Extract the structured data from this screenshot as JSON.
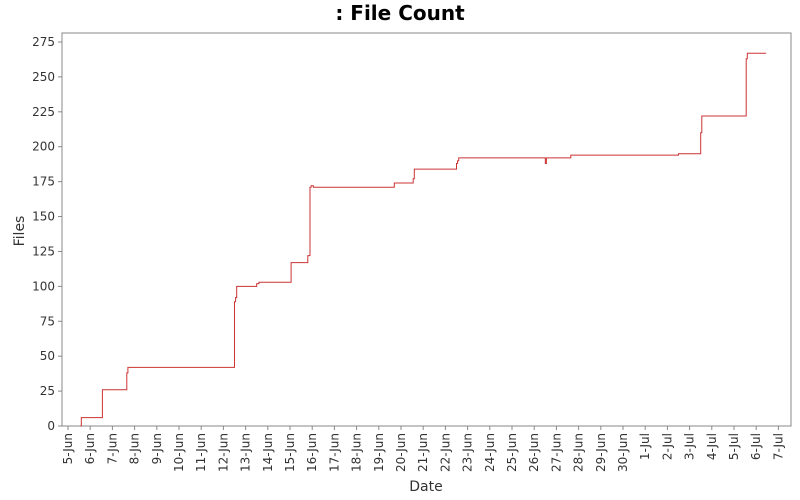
{
  "chart_data": {
    "type": "line",
    "title": ": File Count",
    "xlabel": "Date",
    "ylabel": "Files",
    "ylim": [
      0,
      275
    ],
    "yticks": [
      0,
      25,
      50,
      75,
      100,
      125,
      150,
      175,
      200,
      225,
      250,
      275
    ],
    "x_tick_labels": [
      "5-Jun",
      "6-Jun",
      "7-Jun",
      "8-Jun",
      "9-Jun",
      "10-Jun",
      "11-Jun",
      "12-Jun",
      "13-Jun",
      "14-Jun",
      "15-Jun",
      "16-Jun",
      "17-Jun",
      "18-Jun",
      "19-Jun",
      "20-Jun",
      "21-Jun",
      "22-Jun",
      "23-Jun",
      "24-Jun",
      "25-Jun",
      "26-Jun",
      "27-Jun",
      "28-Jun",
      "29-Jun",
      "30-Jun",
      "1-Jul",
      "2-Jul",
      "3-Jul",
      "4-Jul",
      "5-Jul",
      "6-Jul",
      "7-Jul"
    ],
    "step": true,
    "grid": false,
    "legend": "none",
    "series_color": "#cc3333",
    "series": [
      {
        "x": [
          5.55,
          5.6,
          6.5,
          6.55,
          7.6,
          7.65,
          7.7,
          12.4,
          12.5,
          12.55,
          12.6,
          13.4,
          13.5,
          13.6,
          15.0,
          15.05,
          15.7,
          15.8,
          15.9,
          15.95,
          16.05,
          19.6,
          19.7,
          20.5,
          20.55,
          20.6,
          21.5,
          22.5,
          22.55,
          22.6,
          26.45,
          26.5,
          26.55,
          27.6,
          27.65,
          29.65,
          32.5,
          33.4,
          33.5,
          33.55,
          35.5,
          35.55,
          35.6,
          36.45
        ],
        "y": [
          0,
          6,
          6,
          26,
          26,
          38,
          42,
          42,
          89,
          92,
          100,
          100,
          102,
          103,
          103,
          117,
          117,
          122,
          171,
          172,
          171,
          171,
          174,
          174,
          177,
          184,
          184,
          188,
          190,
          192,
          192,
          188,
          192,
          192,
          194,
          194,
          195,
          195,
          210,
          222,
          222,
          263,
          267,
          267
        ]
      }
    ]
  }
}
